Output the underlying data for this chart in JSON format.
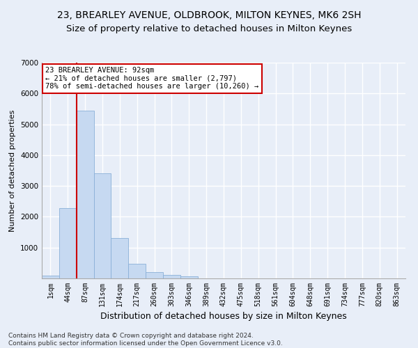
{
  "title": "23, BREARLEY AVENUE, OLDBROOK, MILTON KEYNES, MK6 2SH",
  "subtitle": "Size of property relative to detached houses in Milton Keynes",
  "xlabel": "Distribution of detached houses by size in Milton Keynes",
  "ylabel": "Number of detached properties",
  "categories": [
    "1sqm",
    "44sqm",
    "87sqm",
    "131sqm",
    "174sqm",
    "217sqm",
    "260sqm",
    "303sqm",
    "346sqm",
    "389sqm",
    "432sqm",
    "475sqm",
    "518sqm",
    "561sqm",
    "604sqm",
    "648sqm",
    "691sqm",
    "734sqm",
    "777sqm",
    "820sqm",
    "863sqm"
  ],
  "values": [
    80,
    2270,
    5450,
    3420,
    1310,
    480,
    200,
    110,
    60,
    0,
    0,
    0,
    0,
    0,
    0,
    0,
    0,
    0,
    0,
    0,
    0
  ],
  "bar_color": "#c6d9f1",
  "bar_edge_color": "#8ab0d8",
  "highlight_bar_index": 2,
  "highlight_line_color": "#cc0000",
  "annotation_line1": "23 BREARLEY AVENUE: 92sqm",
  "annotation_line2": "← 21% of detached houses are smaller (2,797)",
  "annotation_line3": "78% of semi-detached houses are larger (10,260) →",
  "annotation_box_color": "#ffffff",
  "annotation_box_edge_color": "#cc0000",
  "ylim": [
    0,
    7000
  ],
  "yticks": [
    0,
    1000,
    2000,
    3000,
    4000,
    5000,
    6000,
    7000
  ],
  "background_color": "#e8eef8",
  "grid_color": "#ffffff",
  "title_fontsize": 10,
  "subtitle_fontsize": 9.5,
  "xlabel_fontsize": 9,
  "ylabel_fontsize": 8,
  "tick_fontsize": 7,
  "footer_text": "Contains HM Land Registry data © Crown copyright and database right 2024.\nContains public sector information licensed under the Open Government Licence v3.0.",
  "footer_fontsize": 6.5
}
